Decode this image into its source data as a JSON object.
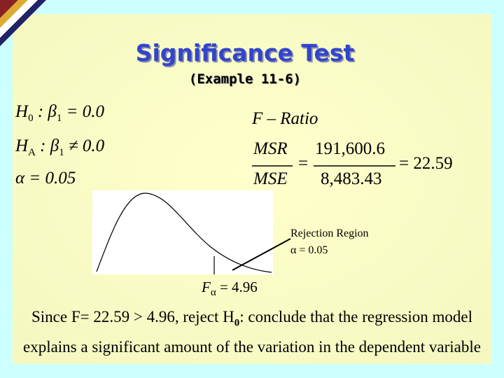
{
  "title": "Significance Test",
  "subtitle": "(Example 11-6)",
  "hypotheses": {
    "h0": {
      "letter": "H",
      "letter_sub": "0",
      "mid": ": β",
      "mid_sub": "1",
      "tail": "= 0.0"
    },
    "ha": {
      "letter": "H",
      "letter_sub": "A",
      "mid": ": β",
      "mid_sub": "1",
      "tail": "≠ 0.0"
    },
    "alpha": "α = 0.05"
  },
  "f_ratio": {
    "label": "F – Ratio",
    "num_name": "MSR",
    "den_name": "MSE",
    "eq1": "=",
    "num_value": "191,600.6",
    "den_value": "8,483.43",
    "result": "= 22.59"
  },
  "graph": {
    "region_label": "Rejection Region",
    "region_alpha": "α = 0.05",
    "crit_letter": "F",
    "crit_sub": "α",
    "crit_value": "= 4.96"
  },
  "conclusion": {
    "before": "Since F= 22.59 > 4.96, reject H",
    "sub": "0",
    "after": ":  conclude that the regression model explains a significant amount of the variation in the dependent variable"
  }
}
